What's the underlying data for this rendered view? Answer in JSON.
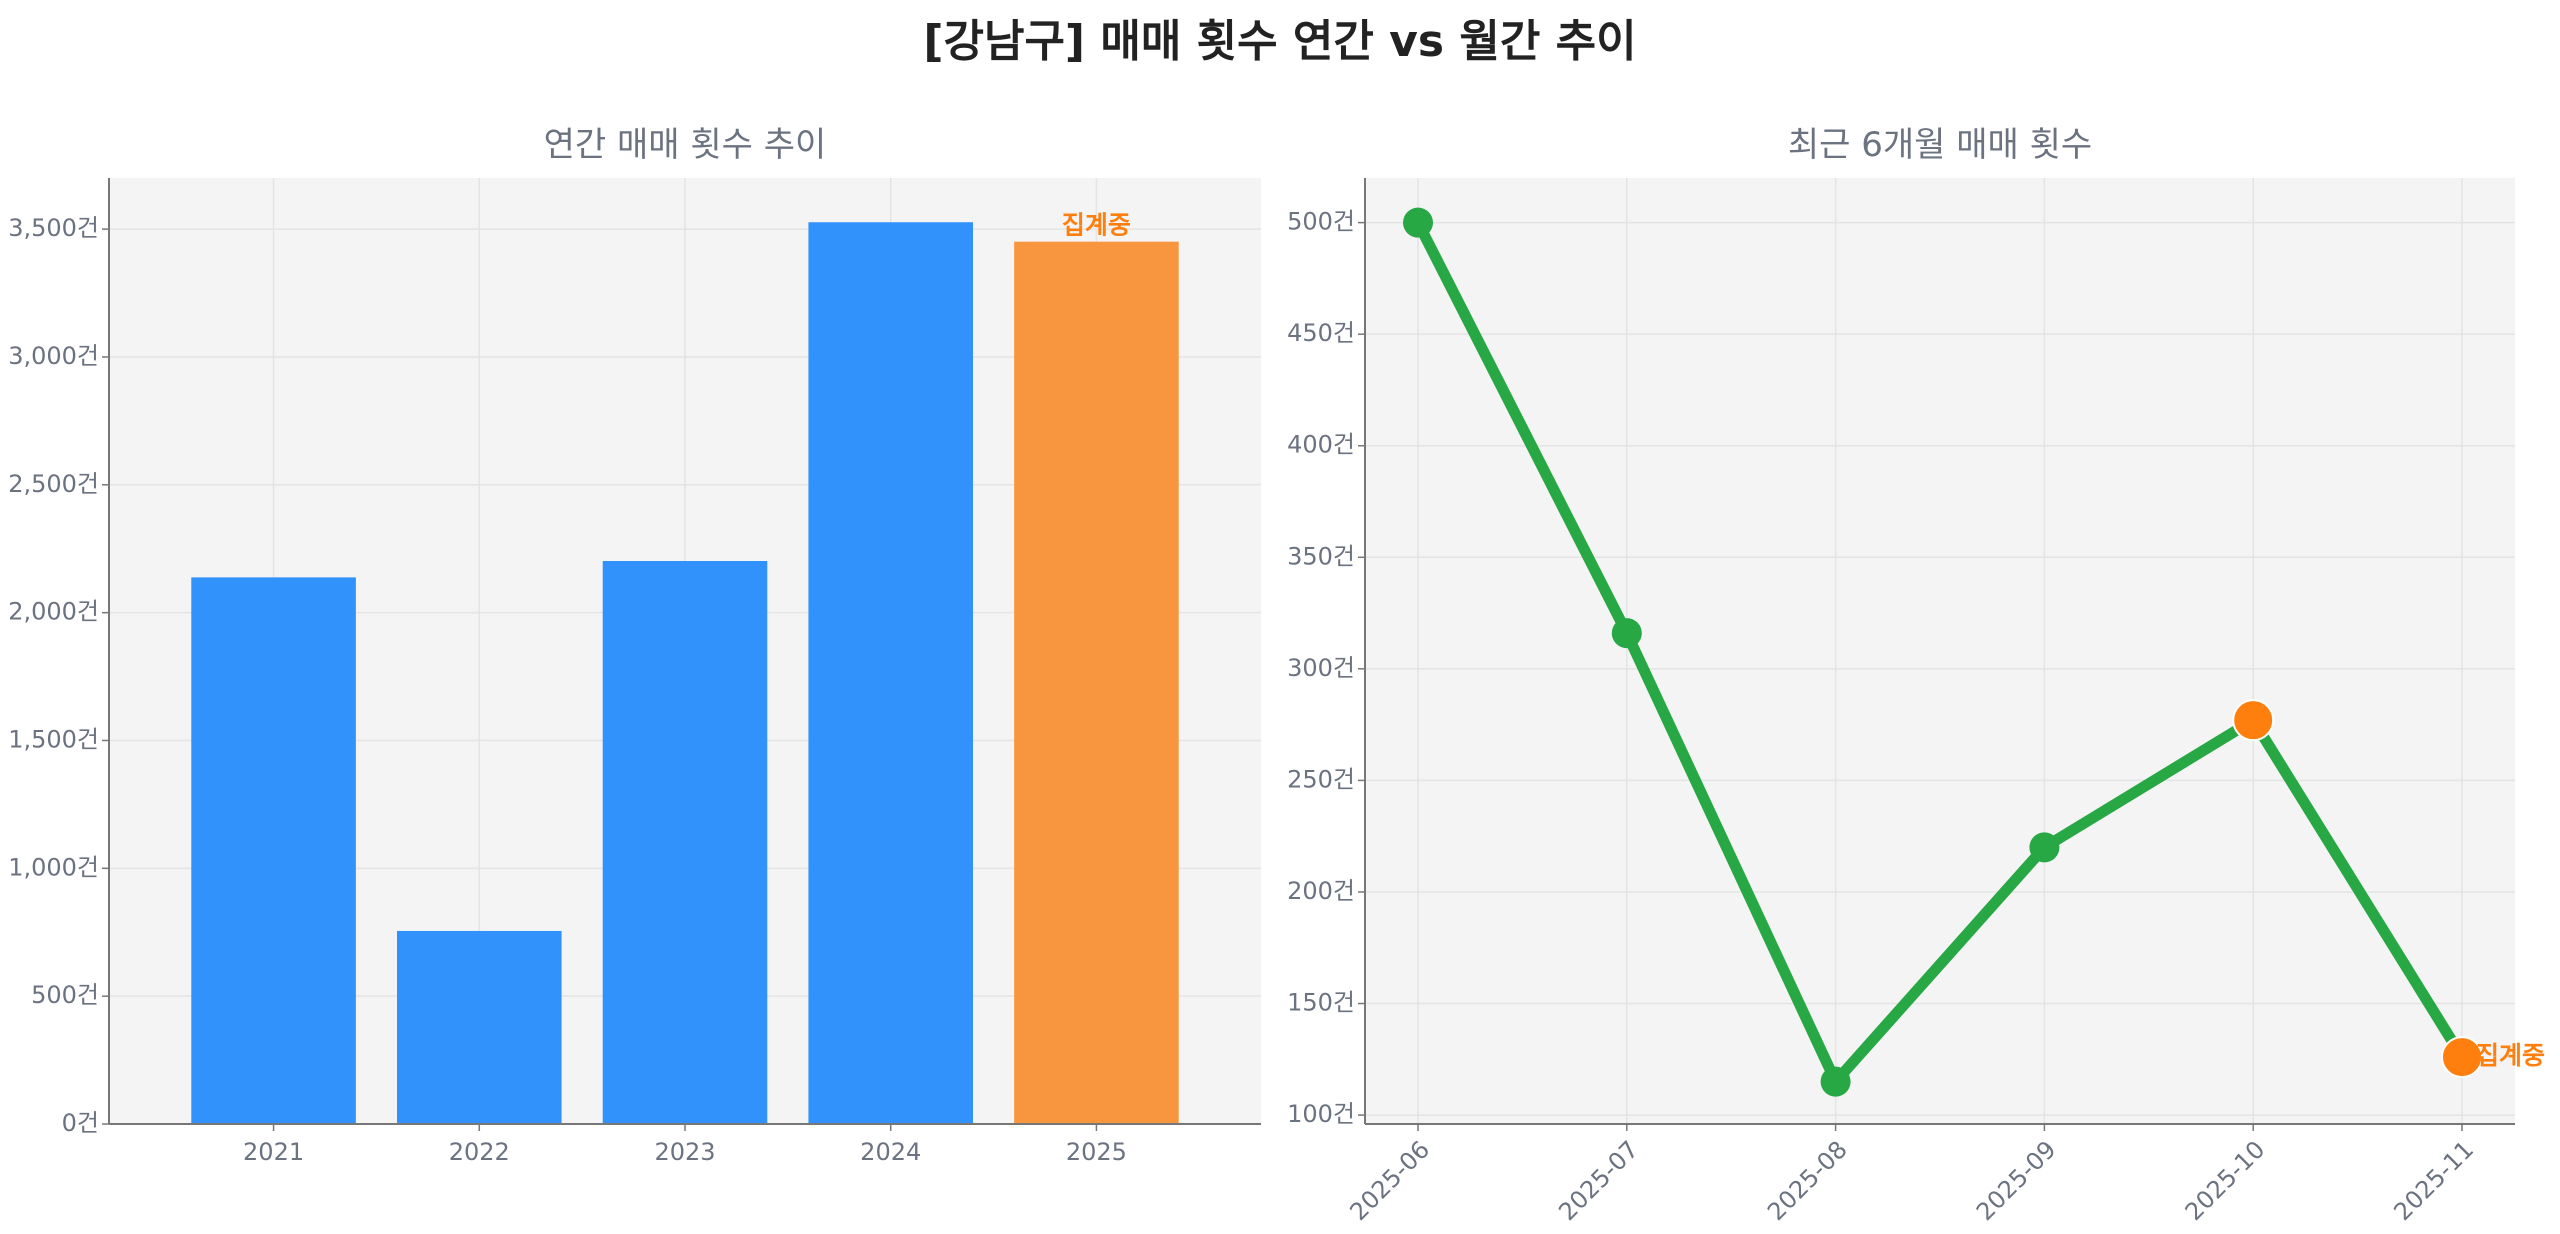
{
  "title": "[강남구] 매매 횟수 연간 vs 월간 추이",
  "colors": {
    "bar": "#3192fb",
    "bar_partial": "#f89640",
    "line": "#28a745",
    "partial_marker": "#ff7f0e",
    "annotation": "#ff7f0e"
  },
  "chart_data": [
    {
      "type": "bar",
      "title": "연간 매매 횟수 추이",
      "categories": [
        "2021",
        "2022",
        "2023",
        "2024",
        "2025"
      ],
      "values": [
        2138,
        755,
        2202,
        3527,
        3451
      ],
      "partial": [
        false,
        false,
        false,
        false,
        true
      ],
      "annotation": "집계중",
      "ylim": [
        0,
        3700
      ],
      "yticks": [
        0,
        500,
        1000,
        1500,
        2000,
        2500,
        3000,
        3500
      ],
      "ytick_labels": [
        "0건",
        "500건",
        "1,000건",
        "1,500건",
        "2,000건",
        "2,500건",
        "3,000건",
        "3,500건"
      ],
      "grid": true
    },
    {
      "type": "line",
      "title": "최근 6개월 매매 횟수",
      "categories": [
        "2025-06",
        "2025-07",
        "2025-08",
        "2025-09",
        "2025-10",
        "2025-11"
      ],
      "values": [
        500,
        316,
        115,
        220,
        277,
        126
      ],
      "highlighted": [
        false,
        false,
        false,
        false,
        true,
        true
      ],
      "annotation": "집계중",
      "ylim": [
        96,
        520
      ],
      "yticks": [
        100,
        150,
        200,
        250,
        300,
        350,
        400,
        450,
        500
      ],
      "ytick_labels": [
        "100건",
        "150건",
        "200건",
        "250건",
        "300건",
        "350건",
        "400건",
        "450건",
        "500건"
      ],
      "grid": true
    }
  ]
}
